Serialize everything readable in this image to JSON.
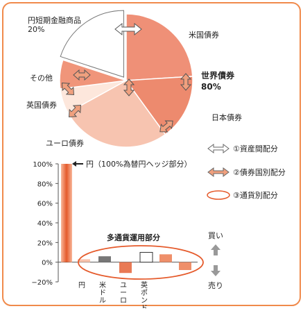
{
  "chart_data": [
    {
      "type": "pie",
      "slices": [
        {
          "label": "円短期金融商品\n20%",
          "value": 20,
          "color": "#ffffff"
        },
        {
          "label": "米国債券",
          "value": 24,
          "color": "#ef9077"
        },
        {
          "label": "日本債券",
          "value": 16,
          "color": "#ed8a6e"
        },
        {
          "label": "ユーロ債券",
          "value": 27,
          "color": "#f7c4b0"
        },
        {
          "label": "英国債券",
          "value": 6,
          "color": "#fde7dc"
        },
        {
          "label": "その他",
          "value": 7,
          "color": "#f0957a"
        }
      ],
      "group_label": "世界債券\n80%"
    },
    {
      "type": "bar",
      "ylabel_ticks": [
        "100%",
        "80%",
        "60%",
        "40%",
        "20%",
        "0%",
        "−20%"
      ],
      "ylim": [
        -20,
        100
      ],
      "categories": [
        "円",
        "米ドル",
        "ユーロ",
        "英ポンド",
        "",
        ""
      ],
      "values": [
        3,
        6,
        -11,
        10,
        8,
        -8
      ],
      "main_bar": {
        "value": 100
      },
      "annotation": "円（100%為替円ヘッジ部分）",
      "group_label": "多通貨運用部分",
      "buy_label": "買い",
      "sell_label": "売り"
    }
  ],
  "legend": [
    {
      "label": "①資産間配分"
    },
    {
      "label": "②債券国別配分"
    },
    {
      "label": "③通貨別配分"
    }
  ],
  "colors": {
    "frame": "#f08a4b",
    "accent": "#e55a2b",
    "axis": "#555555",
    "arrow_gray": "#888888"
  }
}
